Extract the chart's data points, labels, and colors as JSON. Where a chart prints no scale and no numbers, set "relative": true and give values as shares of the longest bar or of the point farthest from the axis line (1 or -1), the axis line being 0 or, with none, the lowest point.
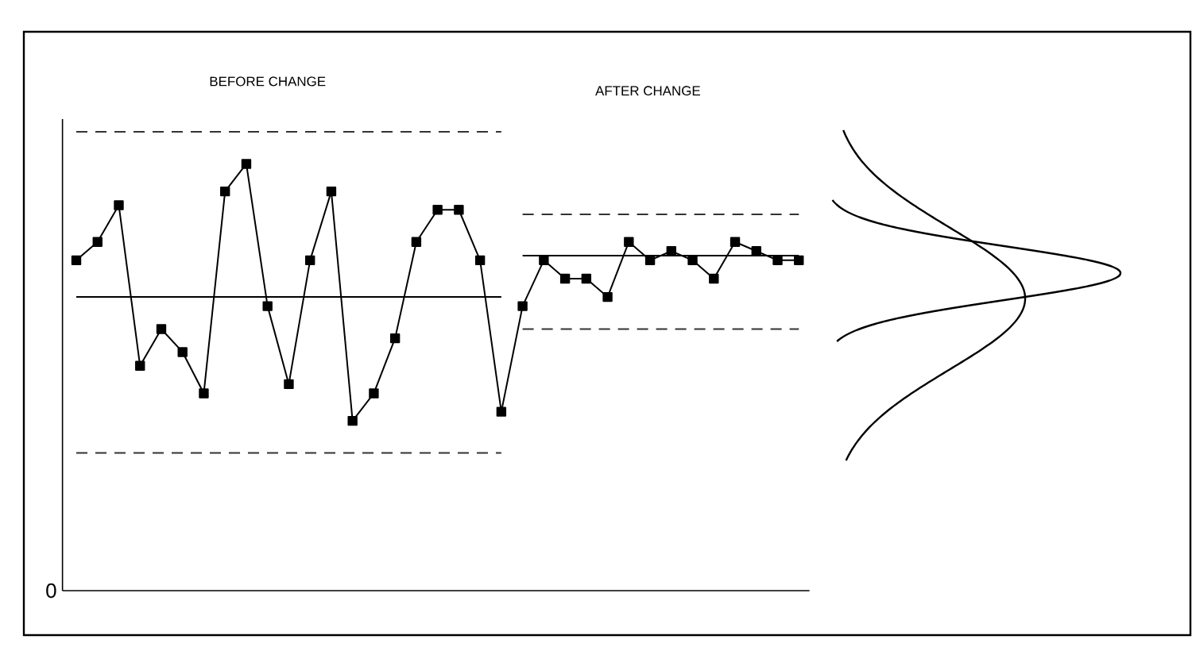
{
  "chart_data": {
    "type": "line",
    "relative": true,
    "marker": "square",
    "line_style": "solid",
    "categories": [
      null,
      null,
      null,
      null,
      null,
      null,
      null,
      null,
      null,
      null,
      null,
      null,
      null,
      null,
      null,
      null,
      null,
      null,
      null,
      null,
      null,
      null,
      null,
      null,
      null,
      null,
      null,
      null,
      null,
      null,
      null,
      null,
      null,
      null,
      null
    ],
    "annotations": [
      "BEFORE CHANGE",
      "AFTER CHANGE",
      "0"
    ],
    "series": [
      {
        "color": "#000000",
        "values": [
          0.72,
          0.76,
          0.84,
          0.49,
          0.57,
          0.52,
          0.43,
          0.87,
          0.93,
          0.62,
          0.45,
          0.72,
          0.87,
          0.37,
          0.43,
          0.55,
          0.76,
          0.83,
          0.83,
          0.72,
          0.39,
          0.62,
          0.72,
          0.68,
          0.68,
          0.64,
          0.76,
          0.72,
          0.74,
          0.72,
          0.68,
          0.76,
          0.74,
          0.72,
          0.72
        ]
      },
      {
        "color": "#333333",
        "values": [
          1.0,
          1.0,
          1.0,
          1.0,
          1.0,
          1.0,
          1.0,
          1.0,
          1.0,
          1.0,
          1.0,
          1.0,
          1.0,
          1.0,
          1.0,
          1.0,
          1.0,
          1.0,
          1.0,
          1.0,
          1.0,
          null,
          null,
          null,
          null,
          null,
          null,
          null,
          null,
          null,
          null,
          null,
          null,
          null,
          null
        ],
        "marker": "none",
        "line_style": "dashed"
      },
      {
        "color": "#000000",
        "values": [
          0.64,
          0.64,
          0.64,
          0.64,
          0.64,
          0.64,
          0.64,
          0.64,
          0.64,
          0.64,
          0.64,
          0.64,
          0.64,
          0.64,
          0.64,
          0.64,
          0.64,
          0.64,
          0.64,
          0.64,
          0.64,
          null,
          null,
          null,
          null,
          null,
          null,
          null,
          null,
          null,
          null,
          null,
          null,
          null,
          null
        ],
        "marker": "none",
        "line_style": "solid"
      },
      {
        "color": "#333333",
        "values": [
          0.3,
          0.3,
          0.3,
          0.3,
          0.3,
          0.3,
          0.3,
          0.3,
          0.3,
          0.3,
          0.3,
          0.3,
          0.3,
          0.3,
          0.3,
          0.3,
          0.3,
          0.3,
          0.3,
          0.3,
          0.3,
          null,
          null,
          null,
          null,
          null,
          null,
          null,
          null,
          null,
          null,
          null,
          null,
          null,
          null
        ],
        "marker": "none",
        "line_style": "dashed"
      },
      {
        "color": "#333333",
        "values": [
          null,
          null,
          null,
          null,
          null,
          null,
          null,
          null,
          null,
          null,
          null,
          null,
          null,
          null,
          null,
          null,
          null,
          null,
          null,
          null,
          null,
          0.82,
          0.82,
          0.82,
          0.82,
          0.82,
          0.82,
          0.82,
          0.82,
          0.82,
          0.82,
          0.82,
          0.82,
          0.82,
          0.82
        ],
        "marker": "none",
        "line_style": "dashed"
      },
      {
        "color": "#000000",
        "values": [
          null,
          null,
          null,
          null,
          null,
          null,
          null,
          null,
          null,
          null,
          null,
          null,
          null,
          null,
          null,
          null,
          null,
          null,
          null,
          null,
          null,
          0.73,
          0.73,
          0.73,
          0.73,
          0.73,
          0.73,
          0.73,
          0.73,
          0.73,
          0.73,
          0.73,
          0.73,
          0.73,
          0.73
        ],
        "marker": "none",
        "line_style": "solid"
      },
      {
        "color": "#333333",
        "values": [
          null,
          null,
          null,
          null,
          null,
          null,
          null,
          null,
          null,
          null,
          null,
          null,
          null,
          null,
          null,
          null,
          null,
          null,
          null,
          null,
          null,
          0.57,
          0.57,
          0.57,
          0.57,
          0.57,
          0.57,
          0.57,
          0.57,
          0.57,
          0.57,
          0.57,
          0.57,
          0.57,
          0.57
        ],
        "marker": "none",
        "line_style": "dashed"
      }
    ]
  }
}
